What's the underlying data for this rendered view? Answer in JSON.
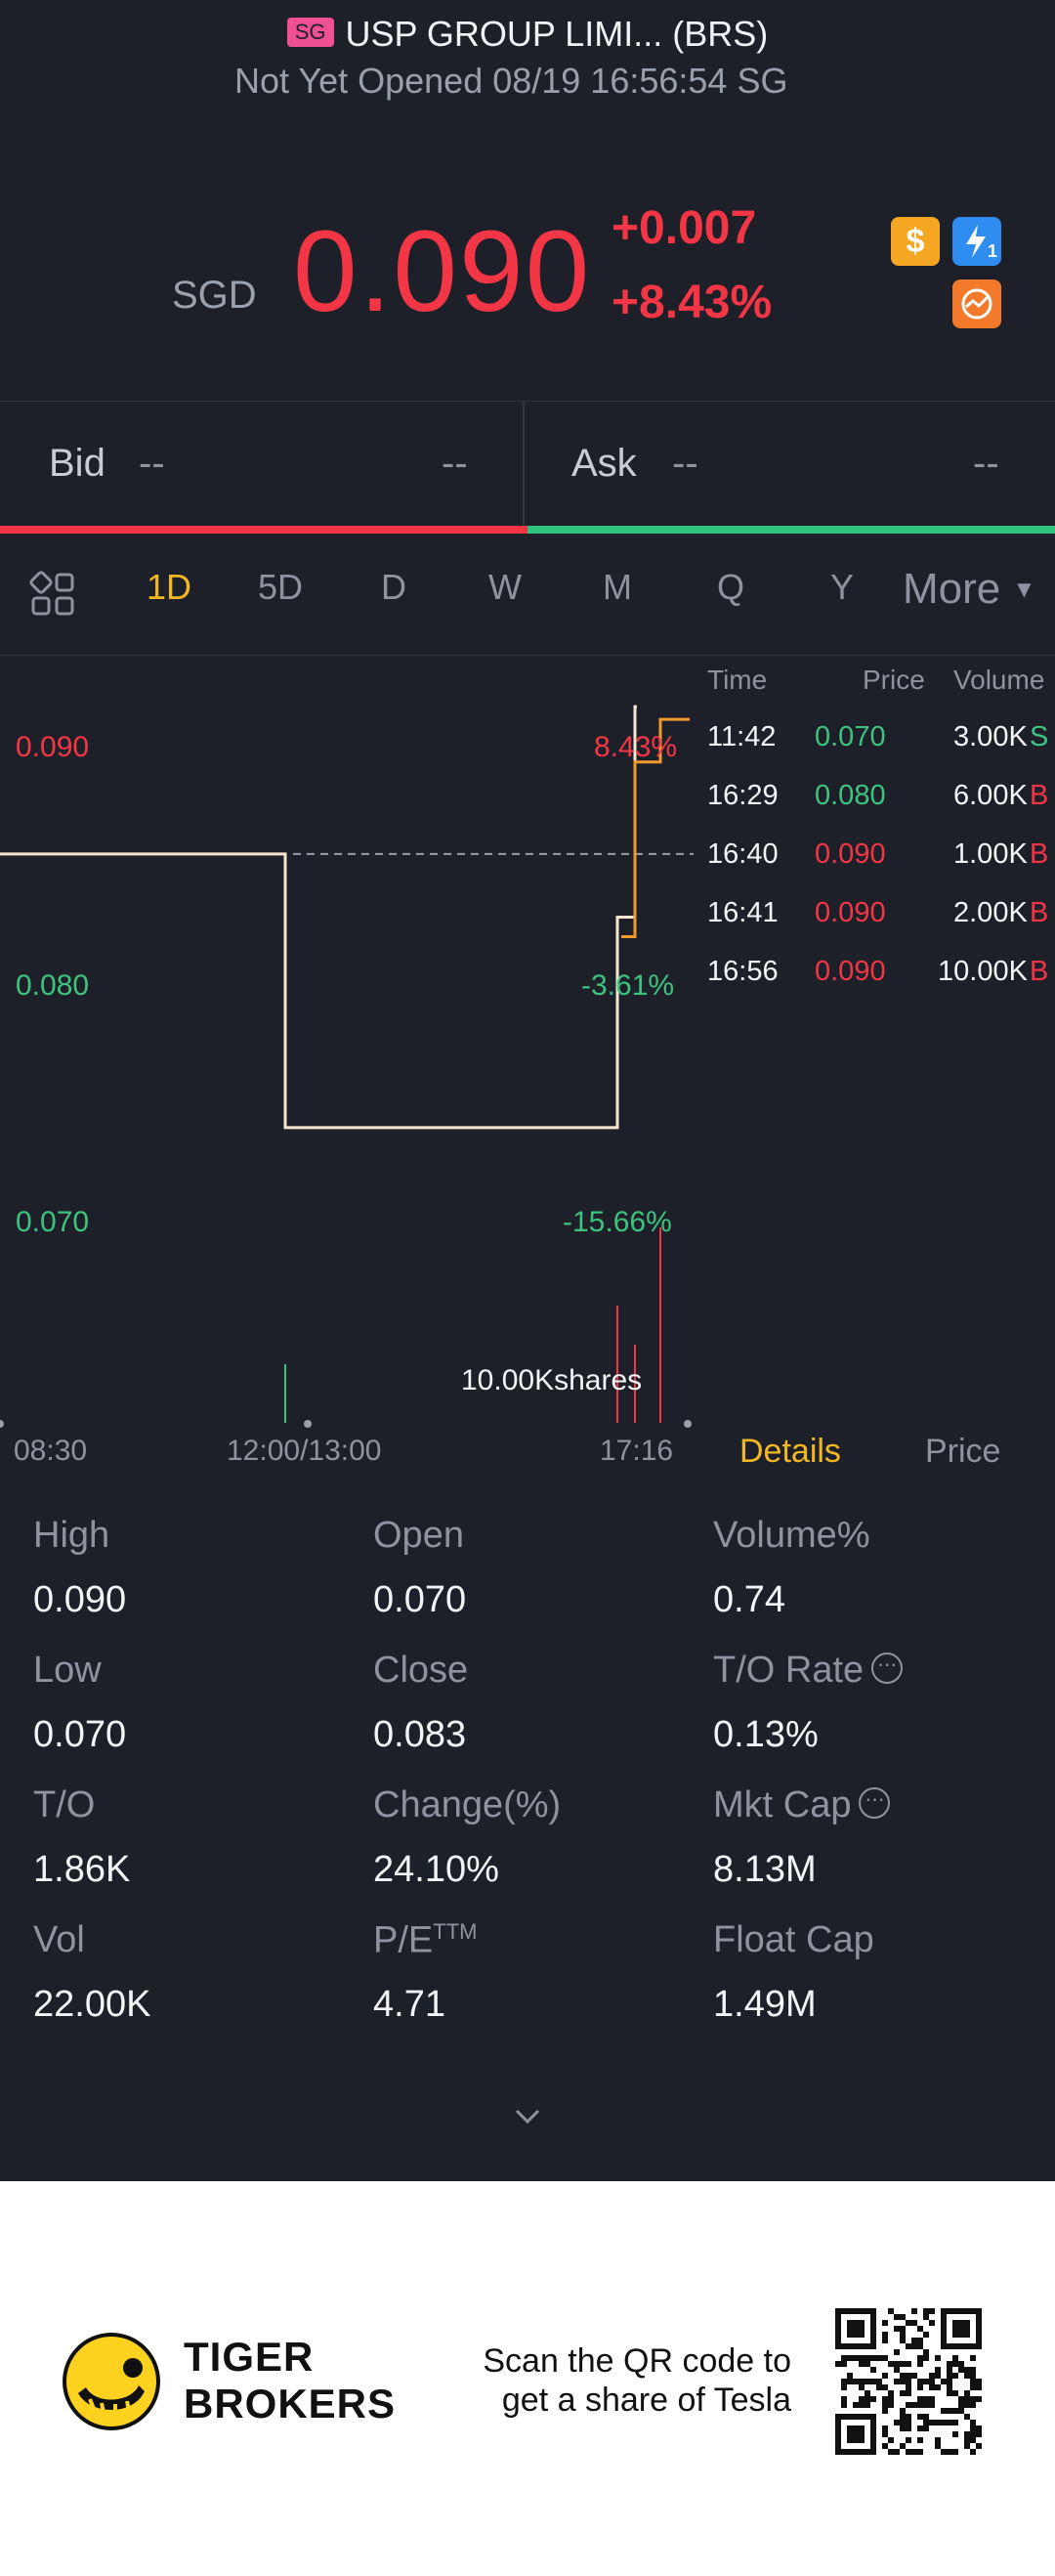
{
  "header": {
    "badge": "SG",
    "title": "USP GROUP LIMI... (BRS)",
    "status": "Not Yet Opened 08/19 16:56:54 SG"
  },
  "quote": {
    "currency": "SGD",
    "price": "0.090",
    "change": "+0.007",
    "change_pct": "+8.43%",
    "icons": [
      "dollar-icon",
      "lightning-icon",
      "chart-icon"
    ],
    "icon_badge": "1",
    "dollar_glyph": "$"
  },
  "bidask": {
    "bid_label": "Bid",
    "bid_price": "--",
    "bid_size": "--",
    "ask_label": "Ask",
    "ask_price": "--",
    "ask_size": "--"
  },
  "tabs": {
    "items": [
      "1D",
      "5D",
      "D",
      "W",
      "M",
      "Q",
      "Y"
    ],
    "more": "More",
    "active": "1D"
  },
  "chart": {
    "y_labels": [
      "0.090",
      "0.080",
      "0.070"
    ],
    "pct_labels": [
      "8.43%",
      "-3.61%",
      "-15.66%"
    ],
    "volume_label": "10.00Kshares",
    "x_labels": [
      "08:30",
      "12:00/13:00",
      "17:16"
    ],
    "chart_data": {
      "type": "line",
      "x": [
        "08:30",
        "11:42",
        "16:29",
        "16:40",
        "16:41",
        "16:56",
        "17:16"
      ],
      "series": [
        {
          "values": [
            0.083,
            0.07,
            0.08,
            0.09,
            0.09,
            0.09,
            0.09
          ]
        }
      ],
      "ylim": [
        0.066,
        0.092
      ]
    }
  },
  "trades": {
    "headers": [
      "Time",
      "Price",
      "Volume"
    ],
    "rows": [
      {
        "time": "11:42",
        "price": "0.070",
        "volume": "3.00K",
        "side": "S"
      },
      {
        "time": "16:29",
        "price": "0.080",
        "volume": "6.00K",
        "side": "B"
      },
      {
        "time": "16:40",
        "price": "0.090",
        "volume": "1.00K",
        "side": "B"
      },
      {
        "time": "16:41",
        "price": "0.090",
        "volume": "2.00K",
        "side": "B"
      },
      {
        "time": "16:56",
        "price": "0.090",
        "volume": "10.00K",
        "side": "B"
      }
    ]
  },
  "detail_tabs": {
    "details": "Details",
    "price": "Price"
  },
  "stats": {
    "high_l": "High",
    "high_v": "0.090",
    "open_l": "Open",
    "open_v": "0.070",
    "volpct_l": "Volume%",
    "volpct_v": "0.74",
    "low_l": "Low",
    "low_v": "0.070",
    "close_l": "Close",
    "close_v": "0.083",
    "torate_l": "T/O Rate",
    "torate_v": "0.13%",
    "to_l": "T/O",
    "to_v": "1.86K",
    "changepct_l": "Change(%)",
    "changepct_v": "24.10%",
    "mktcap_l": "Mkt Cap",
    "mktcap_v": "8.13M",
    "vol_l": "Vol",
    "vol_v": "22.00K",
    "pe_l": "P/E",
    "pe_sup": "TTM",
    "pe_v": "4.71",
    "floatcap_l": "Float Cap",
    "floatcap_v": "1.49M"
  },
  "footer": {
    "brand_line1": "TIGER",
    "brand_line2": "BROKERS",
    "promo_line1": "Scan the QR code to",
    "promo_line2": "get a share of Tesla"
  },
  "colors": {
    "background": "#1e2029",
    "up": "#f23645",
    "down": "#3ec37f",
    "accent": "#f2b824"
  }
}
